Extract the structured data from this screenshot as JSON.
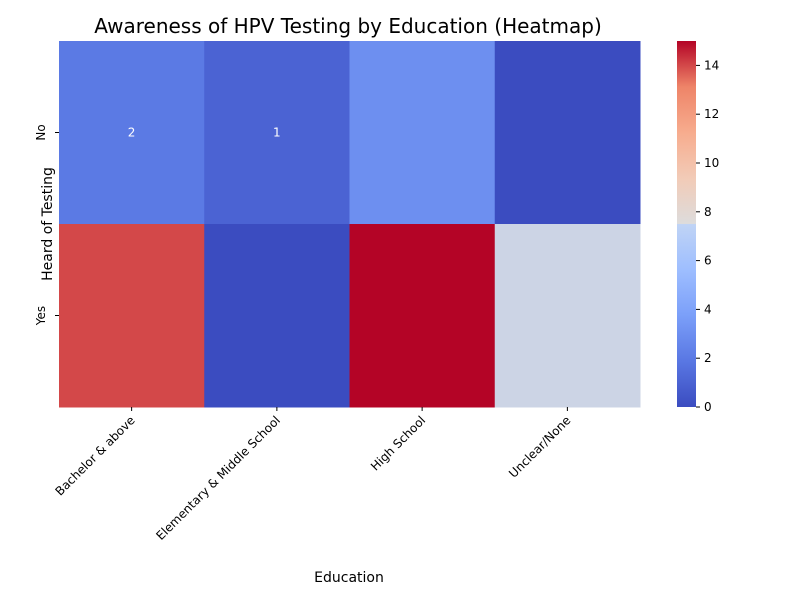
{
  "chart_data": {
    "type": "heatmap",
    "title": "Awareness of HPV Testing by Education (Heatmap)",
    "xlabel": "Education",
    "ylabel": "Heard of Testing",
    "x_categories": [
      "Bachelor & above",
      "Elementary & Middle School",
      "High School",
      "Unclear/None"
    ],
    "y_categories": [
      "No",
      "Yes"
    ],
    "values": [
      [
        2,
        1,
        3,
        0
      ],
      [
        14,
        0,
        15,
        7
      ]
    ],
    "annotations": [
      {
        "row": 0,
        "col": 0,
        "text": "2"
      },
      {
        "row": 0,
        "col": 1,
        "text": "1"
      }
    ],
    "colormap": "coolwarm",
    "vmin": 0,
    "vmax": 15,
    "colorbar_ticks": [
      0,
      2,
      4,
      6,
      8,
      10,
      12,
      14
    ]
  }
}
